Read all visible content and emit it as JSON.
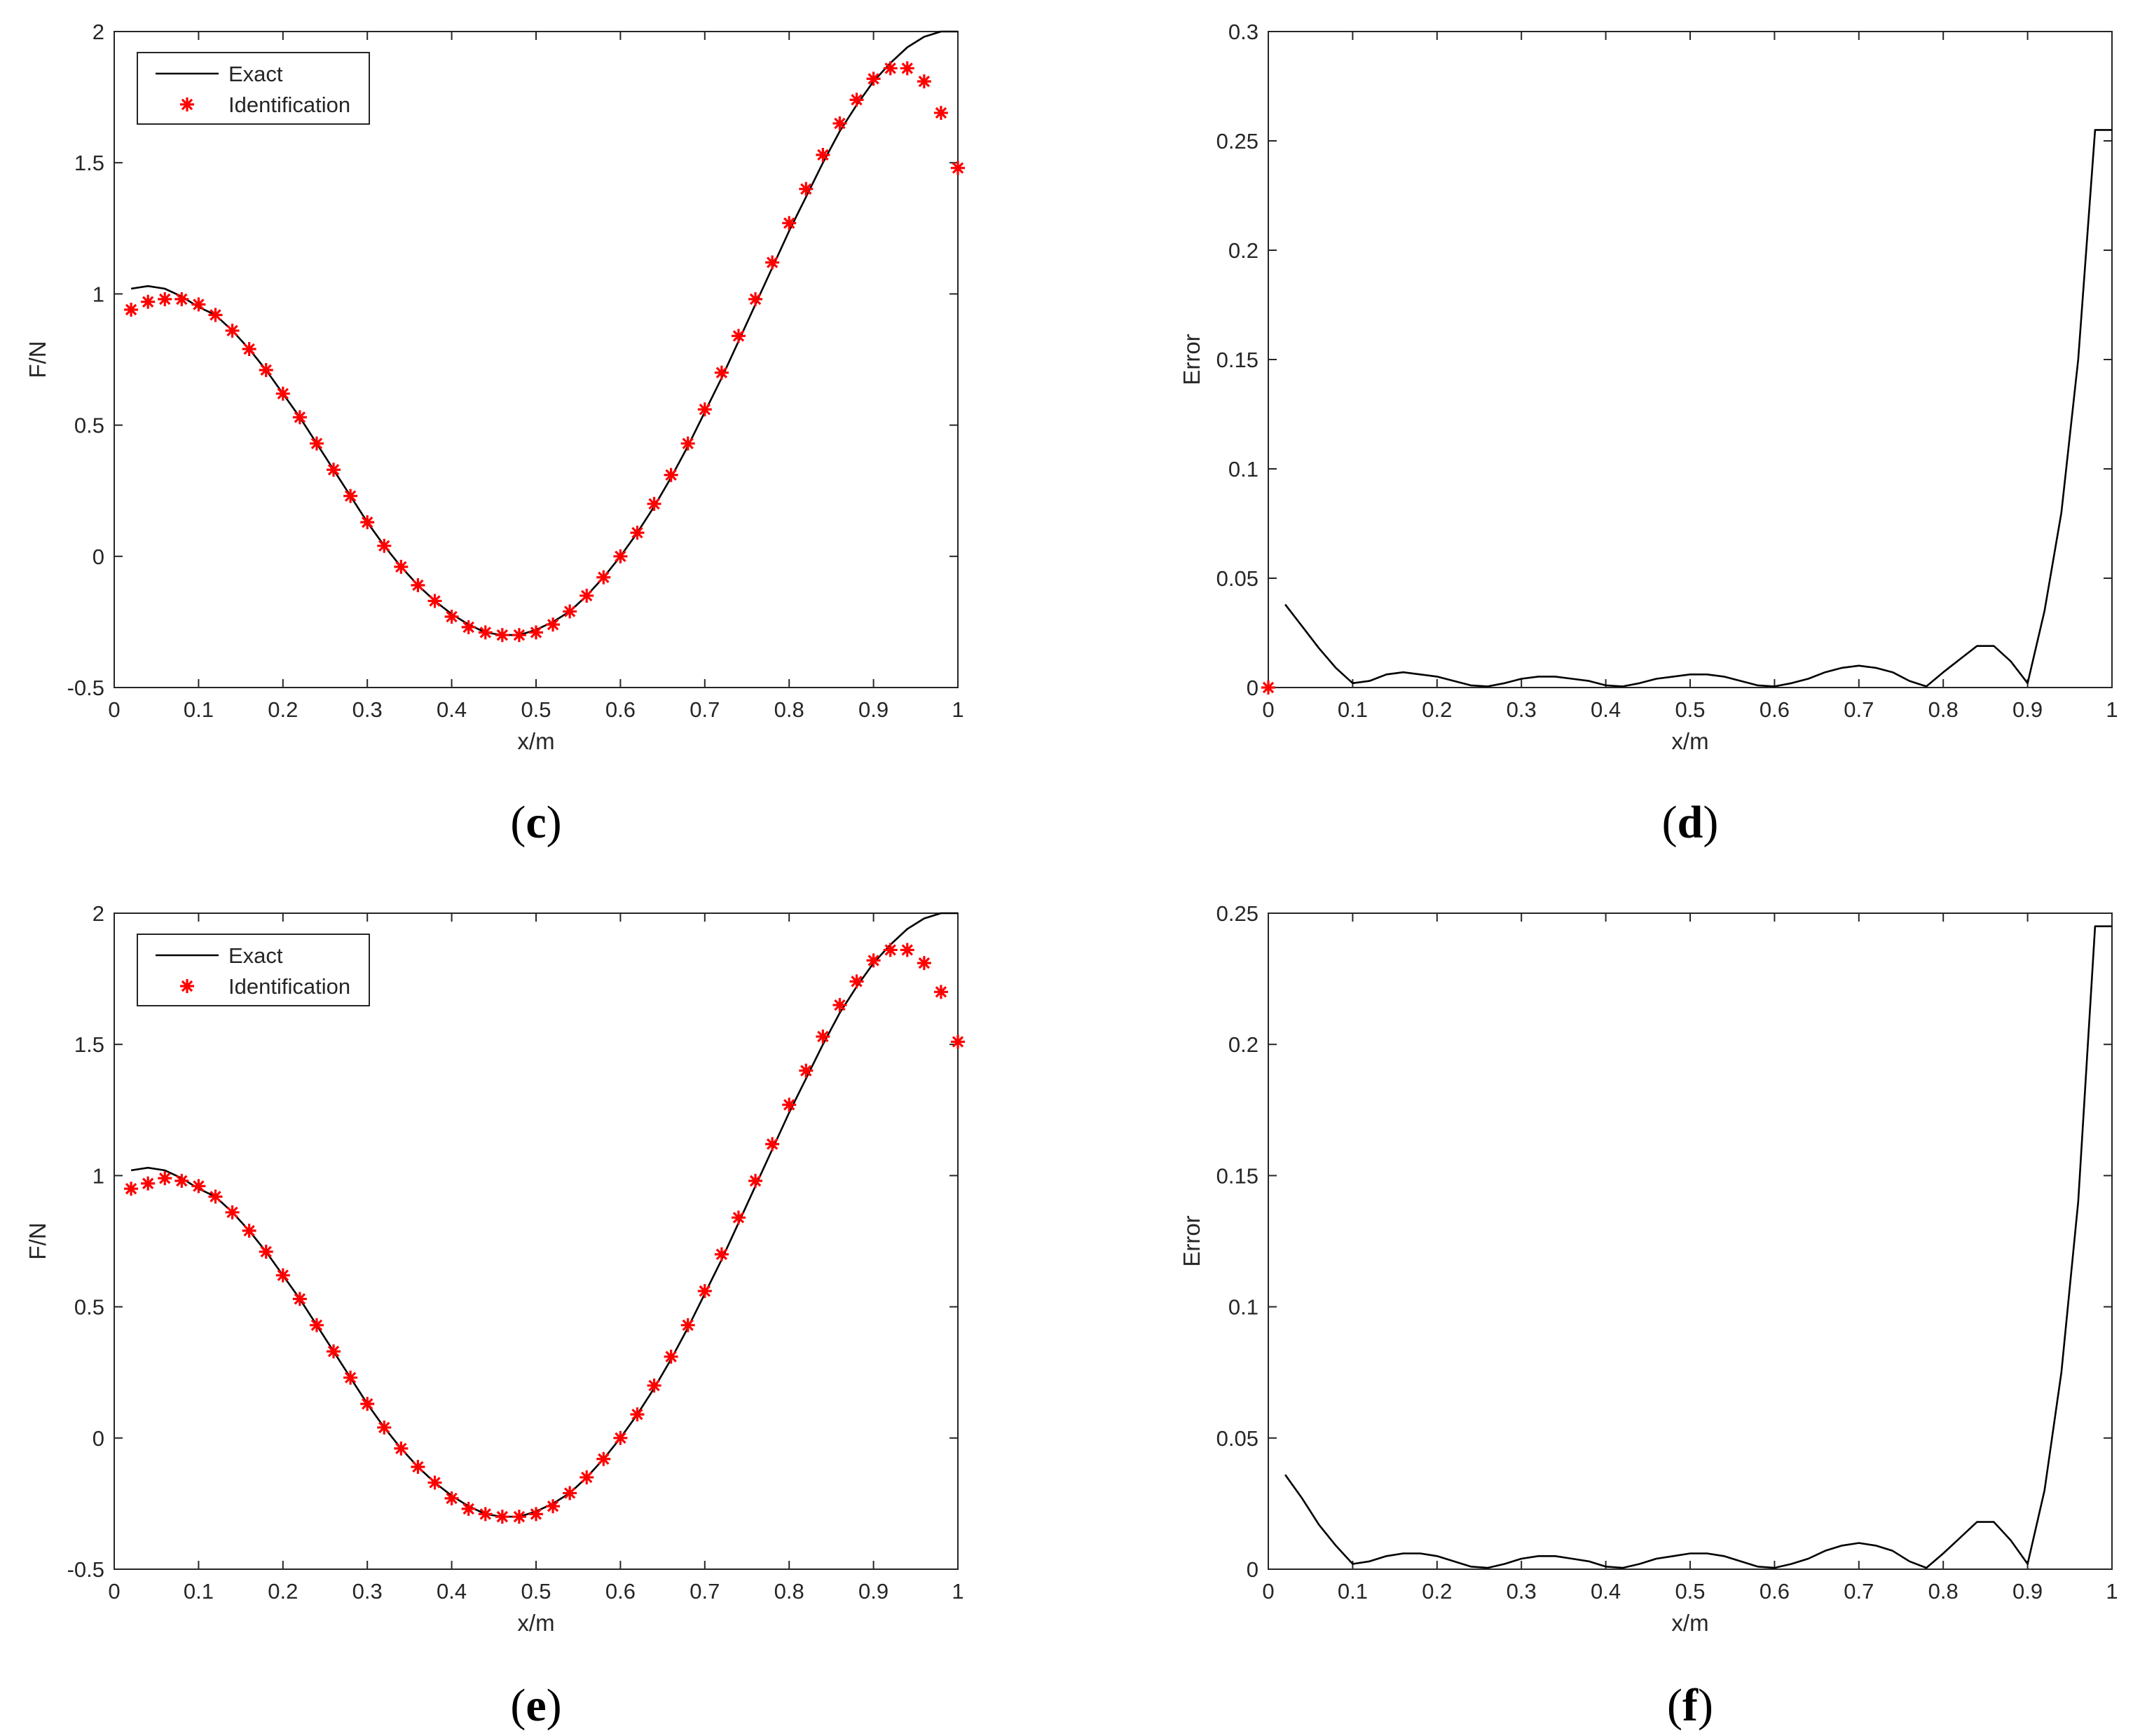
{
  "chart_data": [
    {
      "panel": "(c)",
      "panel_letter": "c",
      "type": "line",
      "xlabel": "x/m",
      "ylabel": "F/N",
      "xlim": [
        0,
        1
      ],
      "ylim": [
        -0.5,
        2
      ],
      "xticks": [
        "0",
        "0.1",
        "0.2",
        "0.3",
        "0.4",
        "0.5",
        "0.6",
        "0.7",
        "0.8",
        "0.9",
        "1"
      ],
      "yticks": [
        "-0.5",
        "0",
        "0.5",
        "1",
        "1.5",
        "2"
      ],
      "legend": {
        "placement": "top-left",
        "entries": [
          "Exact",
          "Identification"
        ]
      },
      "colors": {
        "exact": "#000000",
        "identification": "#ff0000"
      },
      "series": [
        {
          "name": "Exact",
          "style": "line",
          "x": [
            0.02,
            0.04,
            0.06,
            0.08,
            0.1,
            0.12,
            0.14,
            0.16,
            0.18,
            0.2,
            0.22,
            0.24,
            0.26,
            0.28,
            0.3,
            0.32,
            0.34,
            0.36,
            0.38,
            0.4,
            0.42,
            0.44,
            0.46,
            0.48,
            0.5,
            0.52,
            0.54,
            0.56,
            0.58,
            0.6,
            0.62,
            0.64,
            0.66,
            0.68,
            0.7,
            0.72,
            0.74,
            0.76,
            0.78,
            0.8,
            0.82,
            0.84,
            0.86,
            0.88,
            0.9,
            0.92,
            0.94,
            0.96,
            0.98,
            1.0
          ],
          "y": [
            1.02,
            1.03,
            1.02,
            0.99,
            0.95,
            0.92,
            0.86,
            0.79,
            0.71,
            0.62,
            0.53,
            0.43,
            0.33,
            0.23,
            0.13,
            0.04,
            -0.04,
            -0.11,
            -0.17,
            -0.22,
            -0.26,
            -0.29,
            -0.3,
            -0.3,
            -0.28,
            -0.25,
            -0.21,
            -0.15,
            -0.08,
            0.0,
            0.09,
            0.19,
            0.3,
            0.42,
            0.55,
            0.68,
            0.82,
            0.96,
            1.1,
            1.24,
            1.37,
            1.5,
            1.62,
            1.72,
            1.81,
            1.88,
            1.94,
            1.98,
            2.0,
            2.0
          ]
        },
        {
          "name": "Identification",
          "style": "marker",
          "x": [
            0.02,
            0.04,
            0.06,
            0.08,
            0.1,
            0.12,
            0.14,
            0.16,
            0.18,
            0.2,
            0.22,
            0.24,
            0.26,
            0.28,
            0.3,
            0.32,
            0.34,
            0.36,
            0.38,
            0.4,
            0.42,
            0.44,
            0.46,
            0.48,
            0.5,
            0.52,
            0.54,
            0.56,
            0.58,
            0.6,
            0.62,
            0.64,
            0.66,
            0.68,
            0.7,
            0.72,
            0.74,
            0.76,
            0.78,
            0.8,
            0.82,
            0.84,
            0.86,
            0.88,
            0.9,
            0.92,
            0.94,
            0.96,
            0.98,
            1.0
          ],
          "y": [
            0.94,
            0.97,
            0.98,
            0.98,
            0.96,
            0.92,
            0.86,
            0.79,
            0.71,
            0.62,
            0.53,
            0.43,
            0.33,
            0.23,
            0.13,
            0.04,
            -0.04,
            -0.11,
            -0.17,
            -0.23,
            -0.27,
            -0.29,
            -0.3,
            -0.3,
            -0.29,
            -0.26,
            -0.21,
            -0.15,
            -0.08,
            0.0,
            0.09,
            0.2,
            0.31,
            0.43,
            0.56,
            0.7,
            0.84,
            0.98,
            1.12,
            1.27,
            1.4,
            1.53,
            1.65,
            1.74,
            1.82,
            1.86,
            1.86,
            1.81,
            1.69,
            1.48
          ]
        }
      ]
    },
    {
      "panel": "(d)",
      "panel_letter": "d",
      "type": "line",
      "xlabel": "x/m",
      "ylabel": "Error",
      "xlim": [
        0,
        1
      ],
      "ylim": [
        0,
        0.3
      ],
      "xticks": [
        "0",
        "0.1",
        "0.2",
        "0.3",
        "0.4",
        "0.5",
        "0.6",
        "0.7",
        "0.8",
        "0.9",
        "1"
      ],
      "yticks": [
        "0",
        "0.05",
        "0.1",
        "0.15",
        "0.2",
        "0.25",
        "0.3"
      ],
      "colors": {
        "line": "#000000",
        "marker": "#ff0000"
      },
      "series": [
        {
          "style": "line",
          "x": [
            0.02,
            0.04,
            0.06,
            0.08,
            0.1,
            0.12,
            0.14,
            0.16,
            0.18,
            0.2,
            0.22,
            0.24,
            0.26,
            0.28,
            0.3,
            0.32,
            0.34,
            0.36,
            0.38,
            0.4,
            0.42,
            0.44,
            0.46,
            0.48,
            0.5,
            0.52,
            0.54,
            0.56,
            0.58,
            0.6,
            0.62,
            0.64,
            0.66,
            0.68,
            0.7,
            0.72,
            0.74,
            0.76,
            0.78,
            0.8,
            0.82,
            0.84,
            0.86,
            0.88,
            0.9,
            0.92,
            0.94,
            0.96,
            0.98,
            1.0
          ],
          "y": [
            0.038,
            0.028,
            0.018,
            0.009,
            0.002,
            0.003,
            0.006,
            0.007,
            0.006,
            0.005,
            0.003,
            0.001,
            0.0005,
            0.002,
            0.004,
            0.005,
            0.005,
            0.004,
            0.003,
            0.001,
            0.0005,
            0.002,
            0.004,
            0.005,
            0.006,
            0.006,
            0.005,
            0.003,
            0.001,
            0.0005,
            0.002,
            0.004,
            0.007,
            0.009,
            0.01,
            0.009,
            0.007,
            0.003,
            0.0005,
            0.007,
            0.013,
            0.019,
            0.019,
            0.012,
            0.002,
            0.035,
            0.08,
            0.15,
            0.255,
            0.255
          ]
        },
        {
          "style": "marker",
          "x": [
            0
          ],
          "y": [
            0
          ]
        }
      ]
    },
    {
      "panel": "(e)",
      "panel_letter": "e",
      "type": "line",
      "xlabel": "x/m",
      "ylabel": "F/N",
      "xlim": [
        0,
        1
      ],
      "ylim": [
        -0.5,
        2
      ],
      "xticks": [
        "0",
        "0.1",
        "0.2",
        "0.3",
        "0.4",
        "0.5",
        "0.6",
        "0.7",
        "0.8",
        "0.9",
        "1"
      ],
      "yticks": [
        "-0.5",
        "0",
        "0.5",
        "1",
        "1.5",
        "2"
      ],
      "legend": {
        "placement": "top-left",
        "entries": [
          "Exact",
          "Identification"
        ]
      },
      "colors": {
        "exact": "#000000",
        "identification": "#ff0000"
      },
      "series": [
        {
          "name": "Exact",
          "style": "line",
          "x": [
            0.02,
            0.04,
            0.06,
            0.08,
            0.1,
            0.12,
            0.14,
            0.16,
            0.18,
            0.2,
            0.22,
            0.24,
            0.26,
            0.28,
            0.3,
            0.32,
            0.34,
            0.36,
            0.38,
            0.4,
            0.42,
            0.44,
            0.46,
            0.48,
            0.5,
            0.52,
            0.54,
            0.56,
            0.58,
            0.6,
            0.62,
            0.64,
            0.66,
            0.68,
            0.7,
            0.72,
            0.74,
            0.76,
            0.78,
            0.8,
            0.82,
            0.84,
            0.86,
            0.88,
            0.9,
            0.92,
            0.94,
            0.96,
            0.98,
            1.0
          ],
          "y": [
            1.02,
            1.03,
            1.02,
            0.99,
            0.95,
            0.92,
            0.86,
            0.79,
            0.71,
            0.62,
            0.53,
            0.43,
            0.33,
            0.23,
            0.13,
            0.04,
            -0.04,
            -0.11,
            -0.17,
            -0.22,
            -0.26,
            -0.29,
            -0.3,
            -0.3,
            -0.28,
            -0.25,
            -0.21,
            -0.15,
            -0.08,
            0.0,
            0.09,
            0.19,
            0.3,
            0.42,
            0.55,
            0.68,
            0.82,
            0.96,
            1.1,
            1.24,
            1.37,
            1.5,
            1.62,
            1.72,
            1.81,
            1.88,
            1.94,
            1.98,
            2.0,
            2.0
          ]
        },
        {
          "name": "Identification",
          "style": "marker",
          "x": [
            0.02,
            0.04,
            0.06,
            0.08,
            0.1,
            0.12,
            0.14,
            0.16,
            0.18,
            0.2,
            0.22,
            0.24,
            0.26,
            0.28,
            0.3,
            0.32,
            0.34,
            0.36,
            0.38,
            0.4,
            0.42,
            0.44,
            0.46,
            0.48,
            0.5,
            0.52,
            0.54,
            0.56,
            0.58,
            0.6,
            0.62,
            0.64,
            0.66,
            0.68,
            0.7,
            0.72,
            0.74,
            0.76,
            0.78,
            0.8,
            0.82,
            0.84,
            0.86,
            0.88,
            0.9,
            0.92,
            0.94,
            0.96,
            0.98,
            1.0
          ],
          "y": [
            0.95,
            0.97,
            0.99,
            0.98,
            0.96,
            0.92,
            0.86,
            0.79,
            0.71,
            0.62,
            0.53,
            0.43,
            0.33,
            0.23,
            0.13,
            0.04,
            -0.04,
            -0.11,
            -0.17,
            -0.23,
            -0.27,
            -0.29,
            -0.3,
            -0.3,
            -0.29,
            -0.26,
            -0.21,
            -0.15,
            -0.08,
            0.0,
            0.09,
            0.2,
            0.31,
            0.43,
            0.56,
            0.7,
            0.84,
            0.98,
            1.12,
            1.27,
            1.4,
            1.53,
            1.65,
            1.74,
            1.82,
            1.86,
            1.86,
            1.81,
            1.7,
            1.51
          ]
        }
      ]
    },
    {
      "panel": "(f)",
      "panel_letter": "f",
      "type": "line",
      "xlabel": "x/m",
      "ylabel": "Error",
      "xlim": [
        0,
        1
      ],
      "ylim": [
        0,
        0.25
      ],
      "xticks": [
        "0",
        "0.1",
        "0.2",
        "0.3",
        "0.4",
        "0.5",
        "0.6",
        "0.7",
        "0.8",
        "0.9",
        "1"
      ],
      "yticks": [
        "0",
        "0.05",
        "0.1",
        "0.15",
        "0.2",
        "0.25"
      ],
      "colors": {
        "line": "#000000"
      },
      "series": [
        {
          "style": "line",
          "x": [
            0.02,
            0.04,
            0.06,
            0.08,
            0.1,
            0.12,
            0.14,
            0.16,
            0.18,
            0.2,
            0.22,
            0.24,
            0.26,
            0.28,
            0.3,
            0.32,
            0.34,
            0.36,
            0.38,
            0.4,
            0.42,
            0.44,
            0.46,
            0.48,
            0.5,
            0.52,
            0.54,
            0.56,
            0.58,
            0.6,
            0.62,
            0.64,
            0.66,
            0.68,
            0.7,
            0.72,
            0.74,
            0.76,
            0.78,
            0.8,
            0.82,
            0.84,
            0.86,
            0.88,
            0.9,
            0.92,
            0.94,
            0.96,
            0.98,
            1.0
          ],
          "y": [
            0.036,
            0.027,
            0.017,
            0.009,
            0.002,
            0.003,
            0.005,
            0.006,
            0.006,
            0.005,
            0.003,
            0.001,
            0.0005,
            0.002,
            0.004,
            0.005,
            0.005,
            0.004,
            0.003,
            0.001,
            0.0005,
            0.002,
            0.004,
            0.005,
            0.006,
            0.006,
            0.005,
            0.003,
            0.001,
            0.0005,
            0.002,
            0.004,
            0.007,
            0.009,
            0.01,
            0.009,
            0.007,
            0.003,
            0.0005,
            0.006,
            0.012,
            0.018,
            0.018,
            0.011,
            0.002,
            0.03,
            0.075,
            0.14,
            0.245,
            0.245
          ]
        }
      ]
    }
  ]
}
